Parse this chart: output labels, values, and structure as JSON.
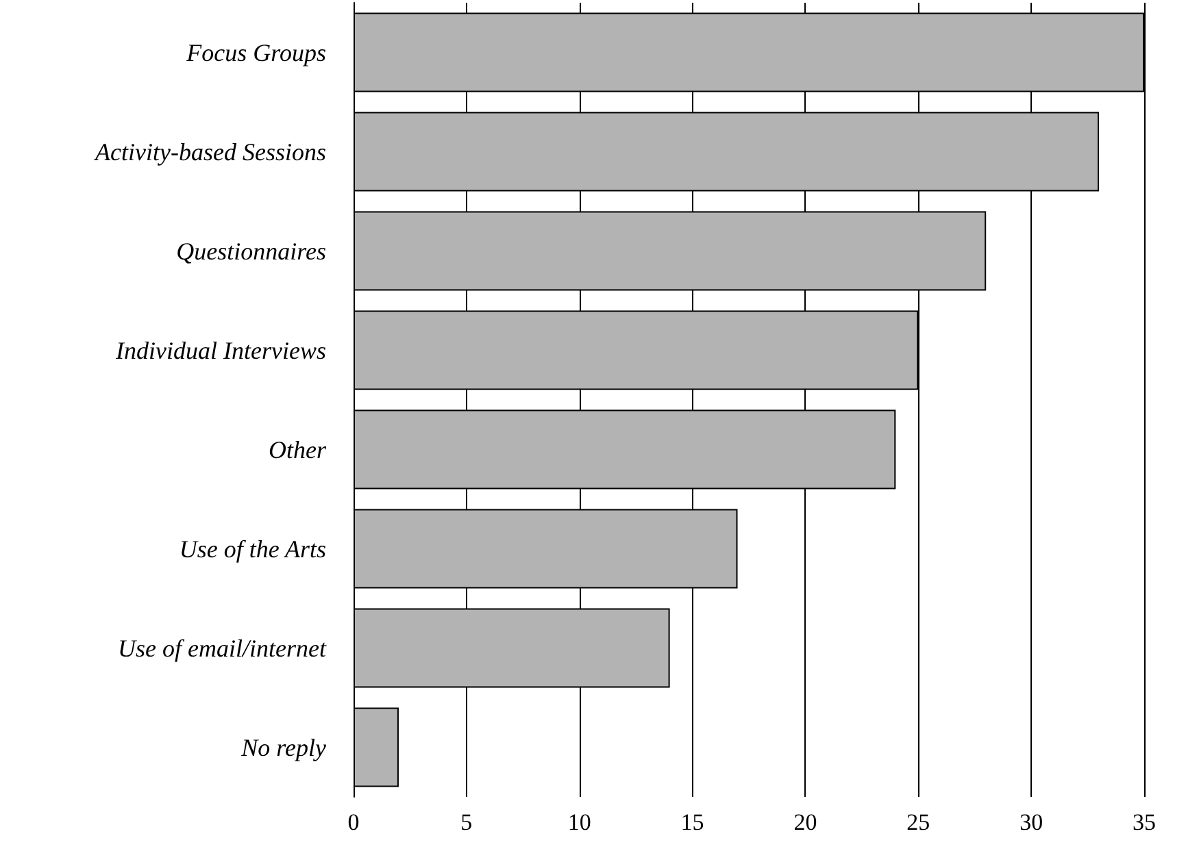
{
  "chart_data": {
    "type": "bar",
    "orientation": "horizontal",
    "categories": [
      "Focus Groups",
      "Activity-based Sessions",
      "Questionnaires",
      "Individual Interviews",
      "Other",
      "Use of the Arts",
      "Use of email/internet",
      "No reply"
    ],
    "values": [
      35,
      33,
      28,
      25,
      24,
      17,
      14,
      2
    ],
    "color": "#b3b3b3",
    "xlim": [
      0,
      35
    ],
    "xticks": [
      0,
      5,
      10,
      15,
      20,
      25,
      30,
      35
    ],
    "grid": "x"
  }
}
